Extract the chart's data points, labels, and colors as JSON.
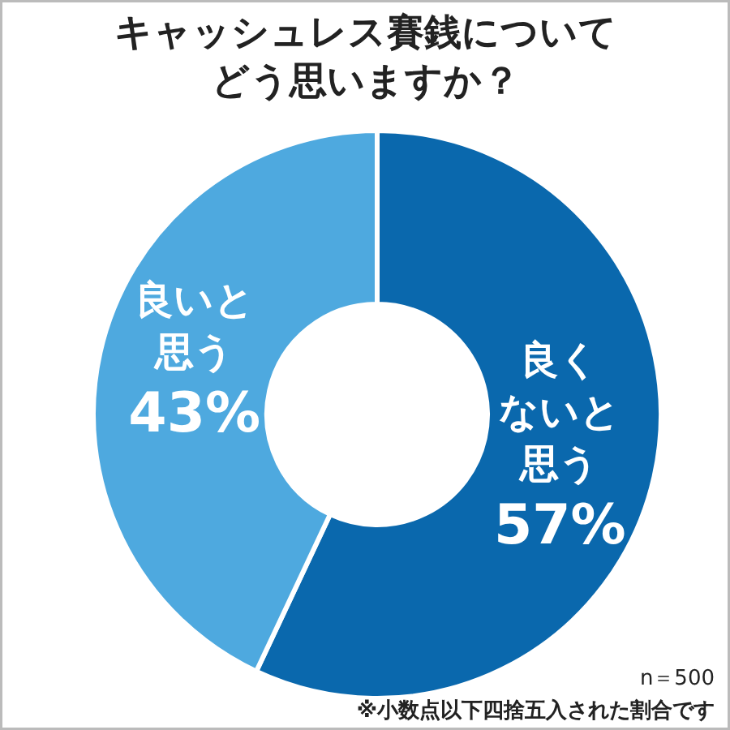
{
  "chart_data": {
    "type": "donut",
    "title": "キャッシュレス賽銭についてどう思いますか？",
    "categories": [
      "良くないと思う",
      "良いと思う"
    ],
    "values": [
      57,
      43
    ],
    "value_labels": [
      "57%",
      "43%"
    ],
    "colors": [
      "#0a68ad",
      "#4ea9df"
    ],
    "annotations": [
      "n＝500",
      "※小数点以下四捨五入された割合です"
    ]
  }
}
